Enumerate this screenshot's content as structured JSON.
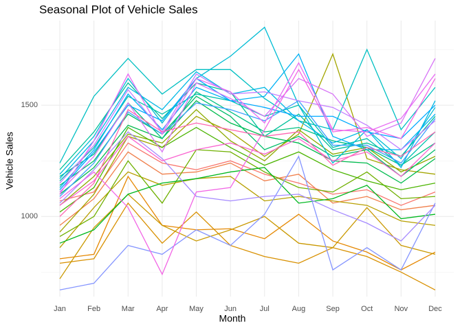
{
  "chart_data": {
    "type": "line",
    "title": "Seasonal Plot of Vehicle Sales",
    "x_label": "Month",
    "y_label": "Vehicle Sales",
    "categories": [
      "Jan",
      "Feb",
      "Mar",
      "Apr",
      "May",
      "Jun",
      "Jul",
      "Aug",
      "Sep",
      "Oct",
      "Nov",
      "Dec"
    ],
    "ylim": [
      640,
      1880
    ],
    "yticks": [
      1000,
      1500
    ],
    "grid": true,
    "series": [
      {
        "color": "#F8766D",
        "values": [
          1070,
          1110,
          1330,
          1240,
          1210,
          1250,
          1190,
          1150,
          1100,
          1120,
          1050,
          1110
        ]
      },
      {
        "color": "#F07F4B",
        "values": [
          960,
          1080,
          1290,
          1190,
          1200,
          1240,
          1160,
          1190,
          1060,
          1090,
          1030,
          1050
        ]
      },
      {
        "color": "#E58700",
        "values": [
          810,
          830,
          1180,
          960,
          940,
          945,
          900,
          1010,
          890,
          840,
          760,
          840
        ]
      },
      {
        "color": "#D89000",
        "values": [
          790,
          810,
          1060,
          880,
          1020,
          870,
          820,
          790,
          860,
          820,
          750,
          670
        ]
      },
      {
        "color": "#C99800",
        "values": [
          720,
          950,
          1100,
          960,
          890,
          940,
          1000,
          880,
          860,
          1040,
          870,
          830
        ]
      },
      {
        "color": "#B79F00",
        "values": [
          860,
          1040,
          1200,
          1140,
          1170,
          1180,
          1070,
          1090,
          1070,
          1050,
          980,
          960
        ]
      },
      {
        "color": "#A3A500",
        "values": [
          930,
          1100,
          1360,
          1310,
          1450,
          1380,
          1270,
          1370,
          1730,
          1260,
          1210,
          1190
        ]
      },
      {
        "color": "#8CAB00",
        "values": [
          1050,
          1180,
          1370,
          1330,
          1480,
          1340,
          1250,
          1390,
          1280,
          1310,
          1200,
          1270
        ]
      },
      {
        "color": "#6FB000",
        "values": [
          910,
          1000,
          1250,
          1060,
          1300,
          1290,
          1200,
          1130,
          1110,
          1200,
          1080,
          1090
        ]
      },
      {
        "color": "#4BB400",
        "values": [
          1020,
          1130,
          1400,
          1310,
          1400,
          1310,
          1230,
          1290,
          1210,
          1160,
          1120,
          1150
        ]
      },
      {
        "color": "#00B81F",
        "values": [
          880,
          940,
          1100,
          1150,
          1170,
          1200,
          1220,
          1060,
          1080,
          1140,
          990,
          1010
        ]
      },
      {
        "color": "#00BB4E",
        "values": [
          1100,
          1220,
          1410,
          1350,
          1520,
          1420,
          1360,
          1330,
          1250,
          1240,
          1150,
          1260
        ]
      },
      {
        "color": "#00BE6A",
        "values": [
          1140,
          1250,
          1460,
          1370,
          1540,
          1450,
          1300,
          1360,
          1270,
          1300,
          1180,
          1300
        ]
      },
      {
        "color": "#00C083",
        "values": [
          1180,
          1280,
          1510,
          1350,
          1560,
          1470,
          1380,
          1400,
          1340,
          1310,
          1230,
          1330
        ]
      },
      {
        "color": "#00C19A",
        "values": [
          1210,
          1380,
          1600,
          1440,
          1600,
          1560,
          1360,
          1460,
          1300,
          1330,
          1270,
          1450
        ]
      },
      {
        "color": "#00C1AE",
        "values": [
          1160,
          1310,
          1540,
          1460,
          1550,
          1520,
          1450,
          1500,
          1310,
          1350,
          1230,
          1380
        ]
      },
      {
        "color": "#00BFC2",
        "values": [
          1240,
          1540,
          1710,
          1550,
          1660,
          1660,
          1530,
          1430,
          1390,
          1750,
          1390,
          1580
        ]
      },
      {
        "color": "#00BCD4",
        "values": [
          1190,
          1360,
          1620,
          1420,
          1620,
          1720,
          1850,
          1500,
          1240,
          1390,
          1260,
          1490
        ]
      },
      {
        "color": "#00B8E5",
        "values": [
          1170,
          1340,
          1580,
          1480,
          1650,
          1550,
          1580,
          1430,
          1330,
          1390,
          1220,
          1520
        ]
      },
      {
        "color": "#00B1F4",
        "values": [
          1130,
          1300,
          1550,
          1390,
          1580,
          1520,
          1540,
          1730,
          1360,
          1300,
          1300,
          1460
        ]
      },
      {
        "color": "#00A9FF",
        "values": [
          1120,
          1290,
          1500,
          1430,
          1620,
          1520,
          1490,
          1450,
          1450,
          1380,
          1350,
          1500
        ]
      },
      {
        "color": "#3DA1FF",
        "values": [
          1090,
          1240,
          1470,
          1370,
          1510,
          1480,
          1430,
          1520,
          1320,
          1320,
          1240,
          1440
        ]
      },
      {
        "color": "#8494FF",
        "values": [
          670,
          700,
          870,
          830,
          940,
          870,
          1010,
          1270,
          760,
          860,
          760,
          1060
        ]
      },
      {
        "color": "#A58AFF",
        "values": [
          1060,
          1210,
          1380,
          1260,
          1090,
          1070,
          1090,
          1100,
          1030,
          970,
          890,
          1050
        ]
      },
      {
        "color": "#C27FFF",
        "values": [
          1150,
          1320,
          1570,
          1380,
          1640,
          1550,
          1560,
          1520,
          1490,
          1410,
          1300,
          1430
        ]
      },
      {
        "color": "#D774F6",
        "values": [
          1110,
          1270,
          1510,
          1290,
          1600,
          1530,
          1450,
          1620,
          1550,
          1360,
          1420,
          1710
        ]
      },
      {
        "color": "#E76BF3",
        "values": [
          1100,
          1340,
          1640,
          1370,
          1620,
          1560,
          1420,
          1690,
          1390,
          1380,
          1440,
          1640
        ]
      },
      {
        "color": "#F265E5",
        "values": [
          1080,
          1200,
          1040,
          740,
          1110,
          1130,
          1390,
          1660,
          1380,
          1400,
          1350,
          1620
        ]
      },
      {
        "color": "#FA62D0",
        "values": [
          1050,
          1160,
          1360,
          1250,
          1300,
          1330,
          1280,
          1350,
          1250,
          1290,
          1180,
          1330
        ]
      },
      {
        "color": "#FF64B0",
        "values": [
          1000,
          1150,
          1480,
          1380,
          1420,
          1390,
          1360,
          1380,
          1230,
          1310,
          1270,
          1380
        ]
      }
    ]
  }
}
